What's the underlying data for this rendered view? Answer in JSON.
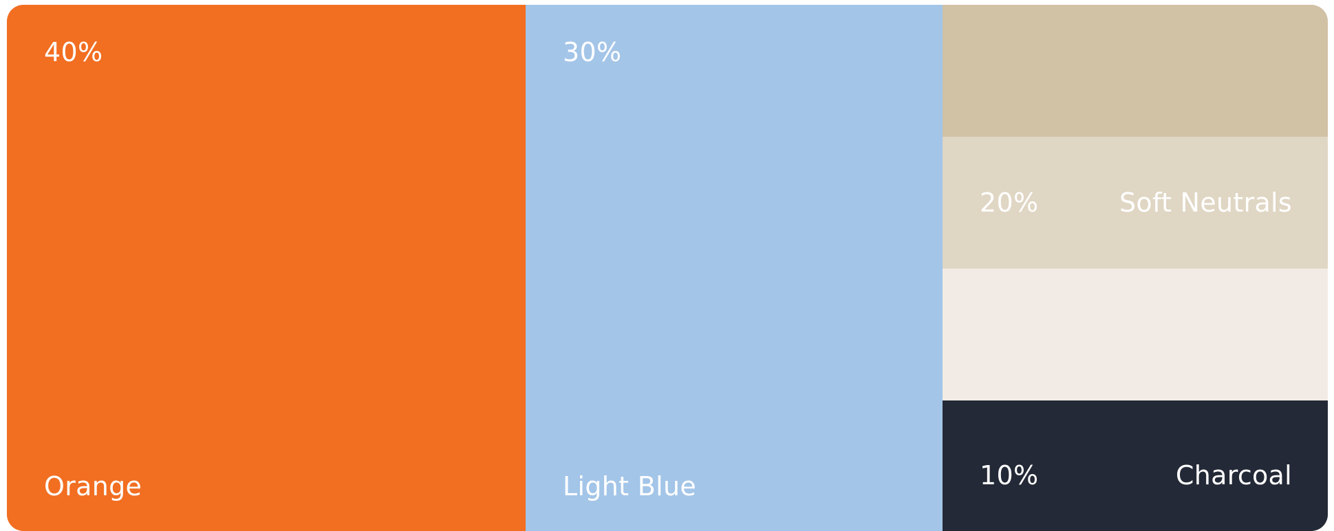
{
  "colors": {
    "orange": "#f26e21",
    "light_blue": "#a3c5e8",
    "neutral_dark": "#d1c1a5",
    "neutral_mid": "#e0d6c4",
    "neutral_light": "#f2ebe5",
    "charcoal": "#232936",
    "text": "#ffffff"
  },
  "orange": {
    "percent": "40%",
    "name": "Orange"
  },
  "light_blue": {
    "percent": "30%",
    "name": "Light Blue"
  },
  "soft_neutrals": {
    "percent": "20%",
    "name": "Soft Neutrals"
  },
  "charcoal": {
    "percent": "10%",
    "name": "Charcoal"
  }
}
